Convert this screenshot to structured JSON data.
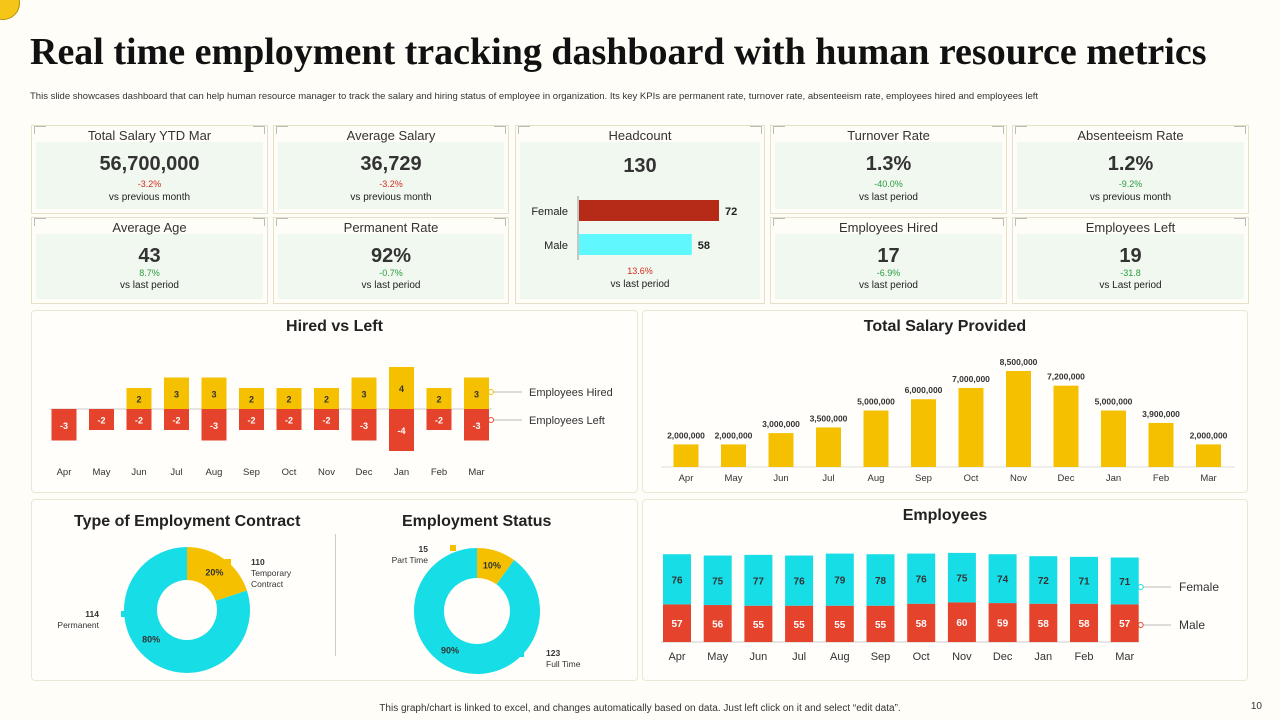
{
  "title": "Real time employment tracking dashboard with human resource metrics",
  "subtitle": "This slide showcases dashboard that can help human resource manager to track the salary and hiring status of employee in organization. Its key KPIs  are permanent rate, turnover rate, absenteeism rate, employees hired and employees left",
  "kpis": {
    "total_salary": {
      "label": "Total Salary  YTD Mar",
      "value": "56,700,000",
      "delta": "-3.2%",
      "compare": "vs previous month"
    },
    "average_salary": {
      "label": "Average  Salary",
      "value": "36,729",
      "delta": "-3.2%",
      "compare": "vs previous month"
    },
    "headcount": {
      "label": "Headcount",
      "value": "130",
      "female_label": "Female",
      "female_value": 72,
      "male_label": "Male",
      "male_value": 58,
      "delta": "13.6%",
      "compare": "vs last period"
    },
    "turnover_rate": {
      "label": "Turnover  Rate",
      "value": "1.3%",
      "delta": "-40.0%",
      "compare": "vs last period"
    },
    "absenteeism_rate": {
      "label": "Absenteeism  Rate",
      "value": "1.2%",
      "delta": "-9.2%",
      "compare": "vs previous month"
    },
    "average_age": {
      "label": "Average  Age",
      "value": "43",
      "delta": "8.7%",
      "compare": "vs last period"
    },
    "permanent_rate": {
      "label": "Permanent Rate",
      "value": "92%",
      "delta": "-0.7%",
      "compare": "vs last period"
    },
    "employees_hired": {
      "label": "Employees  Hired",
      "value": "17",
      "delta": "-6.9%",
      "compare": "vs last period"
    },
    "employees_left": {
      "label": "Employees   Left",
      "value": "19",
      "delta": "-31.8",
      "compare": "vs Last period"
    }
  },
  "colors": {
    "yellow": "#f5c000",
    "red": "#e5432b",
    "cyan": "#17dde6",
    "dark_red": "#b62b17",
    "light_cyan": "#5ff8ff"
  },
  "chart_data": [
    {
      "id": "hired_vs_left",
      "type": "bar",
      "title": "Hired vs Left",
      "categories": [
        "Apr",
        "May",
        "Jun",
        "Jul",
        "Aug",
        "Sep",
        "Oct",
        "Nov",
        "Dec",
        "Jan",
        "Feb",
        "Mar"
      ],
      "series": [
        {
          "name": "Employees Hired",
          "values": [
            null,
            null,
            2,
            3,
            3,
            2,
            2,
            2,
            3,
            4,
            2,
            3
          ]
        },
        {
          "name": "Employees Left",
          "values": [
            -3,
            -2,
            -2,
            -2,
            -3,
            -2,
            -2,
            -2,
            -3,
            -4,
            -2,
            -3
          ]
        }
      ]
    },
    {
      "id": "total_salary",
      "type": "bar",
      "title": "Total Salary Provided",
      "categories": [
        "Apr",
        "May",
        "Jun",
        "Jul",
        "Aug",
        "Sep",
        "Oct",
        "Nov",
        "Dec",
        "Jan",
        "Feb",
        "Mar"
      ],
      "values": [
        2000000,
        2000000,
        3000000,
        3500000,
        5000000,
        6000000,
        7000000,
        8500000,
        7200000,
        5000000,
        3900000,
        2000000
      ],
      "labels": [
        "2,000,000",
        "2,000,000",
        "3,000,000",
        "3,500,000",
        "5,000,000",
        "6,000,000",
        "7,000,000",
        "8,500,000",
        "7,200,000",
        "5,000,000",
        "3,900,000",
        "2,000,000"
      ]
    },
    {
      "id": "employment_contract",
      "type": "pie",
      "title": "Type of Employment Contract",
      "slices": [
        {
          "name": "Temporary Contract",
          "count": "110",
          "label_line1": "Temporary",
          "label_line2": "Contract",
          "percent": 20,
          "percent_label": "20%"
        },
        {
          "name": "Permanent",
          "count": "114",
          "label_line1": "Permanent",
          "percent": 80,
          "percent_label": "80%"
        }
      ]
    },
    {
      "id": "employment_status",
      "type": "pie",
      "title": "Employment Status",
      "slices": [
        {
          "name": "Part Time",
          "count": "15",
          "label_line1": "Part Time",
          "percent": 10,
          "percent_label": "10%"
        },
        {
          "name": "Full Time",
          "count": "123",
          "label_line1": "Full Time",
          "percent": 90,
          "percent_label": "90%"
        }
      ]
    },
    {
      "id": "employees",
      "type": "bar",
      "stacked": true,
      "title": "Employees",
      "categories": [
        "Apr",
        "May",
        "Jun",
        "Jul",
        "Aug",
        "Sep",
        "Oct",
        "Nov",
        "Dec",
        "Jan",
        "Feb",
        "Mar"
      ],
      "series": [
        {
          "name": "Female",
          "values": [
            76,
            75,
            77,
            76,
            79,
            78,
            76,
            75,
            74,
            72,
            71,
            71
          ]
        },
        {
          "name": "Male",
          "values": [
            57,
            56,
            55,
            55,
            55,
            55,
            58,
            60,
            59,
            58,
            58,
            57
          ]
        }
      ]
    }
  ],
  "footer": "This graph/chart is linked to excel, and changes automatically based on data. Just left click on it and select “edit data”.",
  "page_number": "10"
}
